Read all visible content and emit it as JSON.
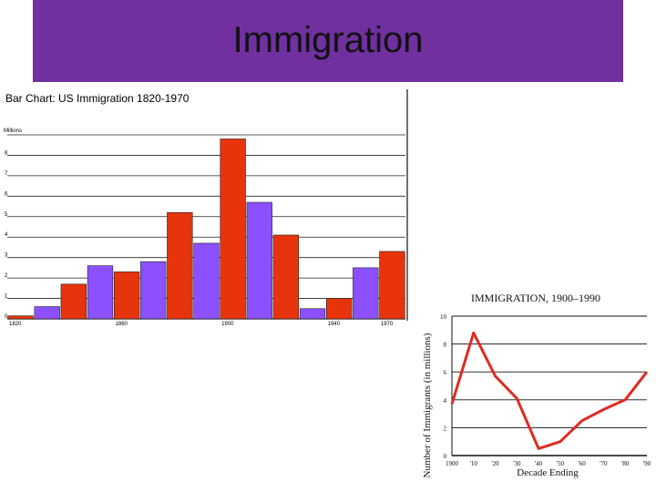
{
  "slide": {
    "title": "Immigration",
    "banner_color": "#7030a0"
  },
  "chart_data": [
    {
      "type": "bar",
      "title": "Bar Chart: US Immigration 1820-1970",
      "ylabel": "Millions",
      "ylim": [
        0,
        9
      ],
      "yticks": [
        "0",
        "1",
        "2",
        "3",
        "4",
        "5",
        "6",
        "7",
        "8",
        "9"
      ],
      "x_tick_labels": [
        "1820",
        "1860",
        "1900",
        "1940",
        "1970"
      ],
      "x_tick_after_bar": [
        0,
        4,
        8,
        12,
        14
      ],
      "colors": {
        "red": "#e8340c",
        "purple": "#8c50ff"
      },
      "bars": [
        {
          "value": 0.15,
          "color": "red"
        },
        {
          "value": 0.6,
          "color": "purple"
        },
        {
          "value": 1.7,
          "color": "red"
        },
        {
          "value": 2.6,
          "color": "purple"
        },
        {
          "value": 2.3,
          "color": "red"
        },
        {
          "value": 2.8,
          "color": "purple"
        },
        {
          "value": 5.2,
          "color": "red"
        },
        {
          "value": 3.7,
          "color": "purple"
        },
        {
          "value": 8.8,
          "color": "red"
        },
        {
          "value": 5.7,
          "color": "purple"
        },
        {
          "value": 4.1,
          "color": "red"
        },
        {
          "value": 0.5,
          "color": "purple"
        },
        {
          "value": 1.0,
          "color": "red"
        },
        {
          "value": 2.5,
          "color": "purple"
        },
        {
          "value": 3.3,
          "color": "red"
        }
      ]
    },
    {
      "type": "line",
      "title": "IMMIGRATION, 1900–1990",
      "ylabel": "Number of Immigrants (in millions)",
      "xlabel": "Decade Ending",
      "x_labels": [
        "1900",
        "'10",
        "'20",
        "'30",
        "'40",
        "'50",
        "'60",
        "'70",
        "'80",
        "'90"
      ],
      "x": [
        1900,
        1910,
        1920,
        1930,
        1940,
        1950,
        1960,
        1970,
        1980,
        1990
      ],
      "y": [
        3.7,
        8.8,
        5.7,
        4.1,
        0.5,
        1.0,
        2.5,
        3.3,
        4.0,
        6.0
      ],
      "ylim": [
        0,
        10
      ],
      "yticks": [
        "0",
        "2",
        "4",
        "6",
        "8",
        "10"
      ],
      "line_color": "#dd2c22"
    }
  ]
}
